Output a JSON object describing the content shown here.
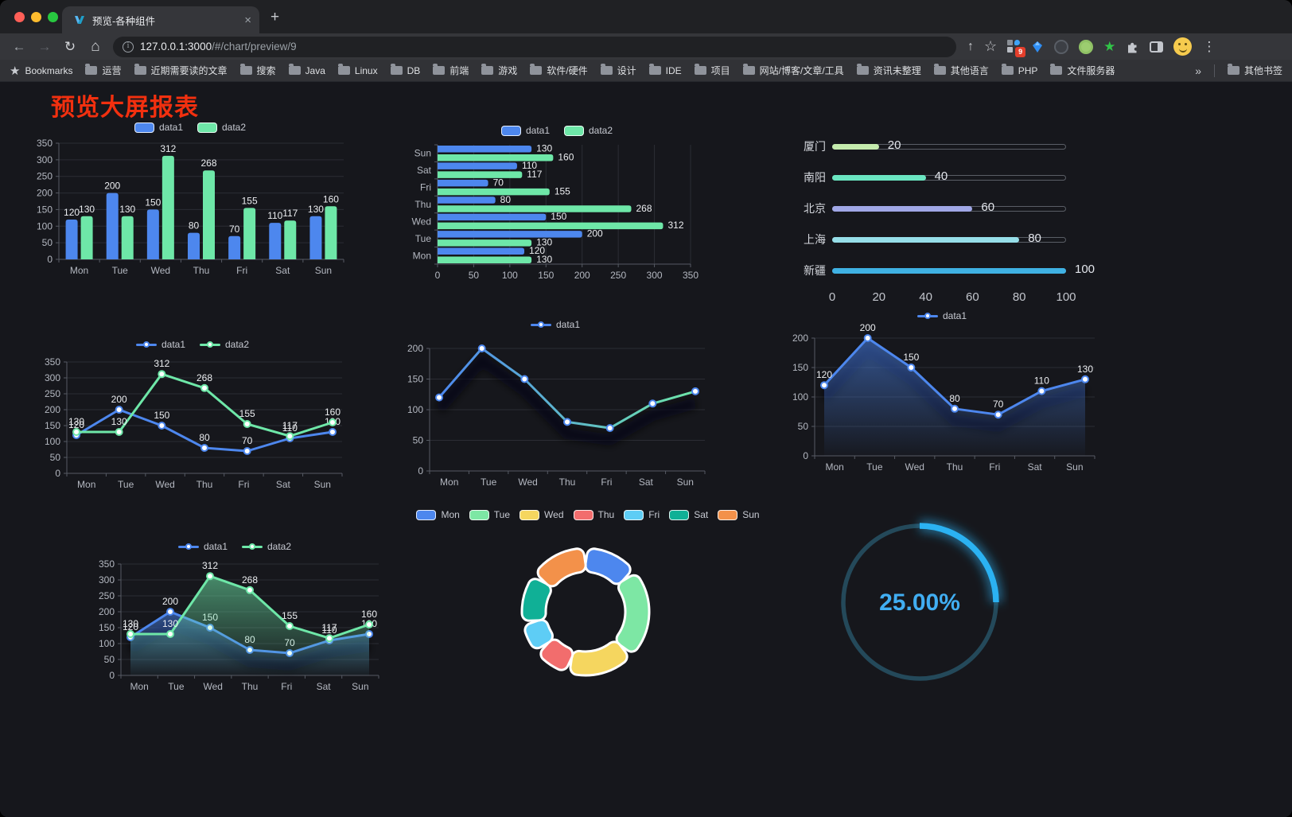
{
  "browser": {
    "tab": {
      "title": "预览-各种组件",
      "close_glyph": "×",
      "new_tab_glyph": "+"
    },
    "nav": {
      "back_glyph": "←",
      "forward_glyph": "→",
      "reload_glyph": "↻",
      "home_glyph": "⌂"
    },
    "address": {
      "host": "127.0.0.1:3000",
      "path": "/#/chart/preview/9"
    },
    "actions": {
      "share_glyph": "↑",
      "star_glyph": "☆",
      "menu_glyph": "⋮",
      "extension_badge": "9"
    },
    "bookmarks_bar": {
      "star_label": "Bookmarks",
      "folders": [
        "运营",
        "近期需要读的文章",
        "搜索",
        "Java",
        "Linux",
        "DB",
        "前端",
        "游戏",
        "软件/硬件",
        "设计",
        "IDE",
        "项目",
        "网站/博客/文章/工具",
        "资讯未整理",
        "其他语言",
        "PHP",
        "文件服务器"
      ],
      "overflow_glyph": "»",
      "other_bookmarks": "其他书签"
    }
  },
  "page": {
    "title": "预览大屏报表",
    "title_color": "#f2300f",
    "background": "#16171c"
  },
  "chart_data": [
    {
      "id": "grouped-bar",
      "type": "bar",
      "categories": [
        "Mon",
        "Tue",
        "Wed",
        "Thu",
        "Fri",
        "Sat",
        "Sun"
      ],
      "series": [
        {
          "name": "data1",
          "color": "#4d87ee",
          "values": [
            120,
            200,
            150,
            80,
            70,
            110,
            130
          ]
        },
        {
          "name": "data2",
          "color": "#6ee7a8",
          "values": [
            130,
            130,
            312,
            268,
            155,
            117,
            160
          ]
        }
      ],
      "ylim": [
        0,
        350
      ],
      "ytick": 50,
      "legend_position": "top",
      "grid": true
    },
    {
      "id": "grouped-horizontal-bar",
      "type": "hbar",
      "categories": [
        "Mon",
        "Tue",
        "Wed",
        "Thu",
        "Fri",
        "Sat",
        "Sun"
      ],
      "series": [
        {
          "name": "data1",
          "color": "#4d87ee",
          "values": [
            120,
            200,
            150,
            80,
            70,
            110,
            130
          ]
        },
        {
          "name": "data2",
          "color": "#6ee7a8",
          "values": [
            130,
            130,
            312,
            268,
            155,
            117,
            160
          ]
        }
      ],
      "xlim": [
        0,
        350
      ],
      "xtick": 50,
      "legend_position": "top",
      "grid": true
    },
    {
      "id": "city-progress",
      "type": "progress",
      "max": 100,
      "axis_ticks": [
        0,
        20,
        40,
        60,
        80,
        100
      ],
      "items": [
        {
          "label": "厦门",
          "value": 20,
          "color": "#c4ebad"
        },
        {
          "label": "南阳",
          "value": 40,
          "color": "#6be6c1"
        },
        {
          "label": "北京",
          "value": 60,
          "color": "#a0a7e6"
        },
        {
          "label": "上海",
          "value": 80,
          "color": "#96dee8"
        },
        {
          "label": "新疆",
          "value": 100,
          "color": "#3fb1e3"
        }
      ]
    },
    {
      "id": "line-two-series",
      "type": "line",
      "categories": [
        "Mon",
        "Tue",
        "Wed",
        "Thu",
        "Fri",
        "Sat",
        "Sun"
      ],
      "series": [
        {
          "name": "data1",
          "color": "#4d87ee",
          "values": [
            120,
            200,
            150,
            80,
            70,
            110,
            130
          ]
        },
        {
          "name": "data2",
          "color": "#6ee7a8",
          "values": [
            130,
            130,
            312,
            268,
            155,
            117,
            160
          ]
        }
      ],
      "ylim": [
        0,
        350
      ],
      "ytick": 50,
      "labels": true,
      "shadow": false,
      "grid": true
    },
    {
      "id": "line-gradient",
      "type": "line",
      "categories": [
        "Mon",
        "Tue",
        "Wed",
        "Thu",
        "Fri",
        "Sat",
        "Sun"
      ],
      "series": [
        {
          "name": "data1",
          "color": "#4d87ee",
          "gradient": [
            "#4d87ee",
            "#6ee7a8"
          ],
          "values": [
            120,
            200,
            150,
            80,
            70,
            110,
            130
          ]
        }
      ],
      "ylim": [
        0,
        200
      ],
      "ytick": 50,
      "labels": false,
      "shadow": true,
      "grid": true
    },
    {
      "id": "line-area",
      "type": "line",
      "categories": [
        "Mon",
        "Tue",
        "Wed",
        "Thu",
        "Fri",
        "Sat",
        "Sun"
      ],
      "series": [
        {
          "name": "data1",
          "color": "#4d87ee",
          "values": [
            120,
            200,
            150,
            80,
            70,
            110,
            130
          ],
          "area": true
        }
      ],
      "ylim": [
        0,
        200
      ],
      "ytick": 50,
      "labels": true,
      "shadow": true,
      "grid": true
    },
    {
      "id": "line-two-area",
      "type": "line",
      "categories": [
        "Mon",
        "Tue",
        "Wed",
        "Thu",
        "Fri",
        "Sat",
        "Sun"
      ],
      "series": [
        {
          "name": "data1",
          "color": "#4d87ee",
          "values": [
            120,
            200,
            150,
            80,
            70,
            110,
            130
          ],
          "area": true
        },
        {
          "name": "data2",
          "color": "#6ee7a8",
          "values": [
            130,
            130,
            312,
            268,
            155,
            117,
            160
          ],
          "area": true
        }
      ],
      "ylim": [
        0,
        350
      ],
      "ytick": 50,
      "labels": true,
      "shadow": true,
      "grid": true
    },
    {
      "id": "weekday-donut",
      "type": "donut",
      "slices": [
        {
          "label": "Mon",
          "value": 120,
          "color": "#4d87ee"
        },
        {
          "label": "Tue",
          "value": 200,
          "color": "#7de7a4"
        },
        {
          "label": "Wed",
          "value": 150,
          "color": "#f5d65f"
        },
        {
          "label": "Thu",
          "value": 80,
          "color": "#f26d6d"
        },
        {
          "label": "Fri",
          "value": 70,
          "color": "#5ecdf5"
        },
        {
          "label": "Sat",
          "value": 110,
          "color": "#10b096"
        },
        {
          "label": "Sun",
          "value": 130,
          "color": "#f3914a"
        }
      ]
    },
    {
      "id": "percent-gauge",
      "type": "gauge",
      "value_label": "25.00%",
      "percent": 25,
      "color": "#2bb2f2",
      "track_color": "#24495a",
      "text_color": "#41aef2"
    }
  ]
}
